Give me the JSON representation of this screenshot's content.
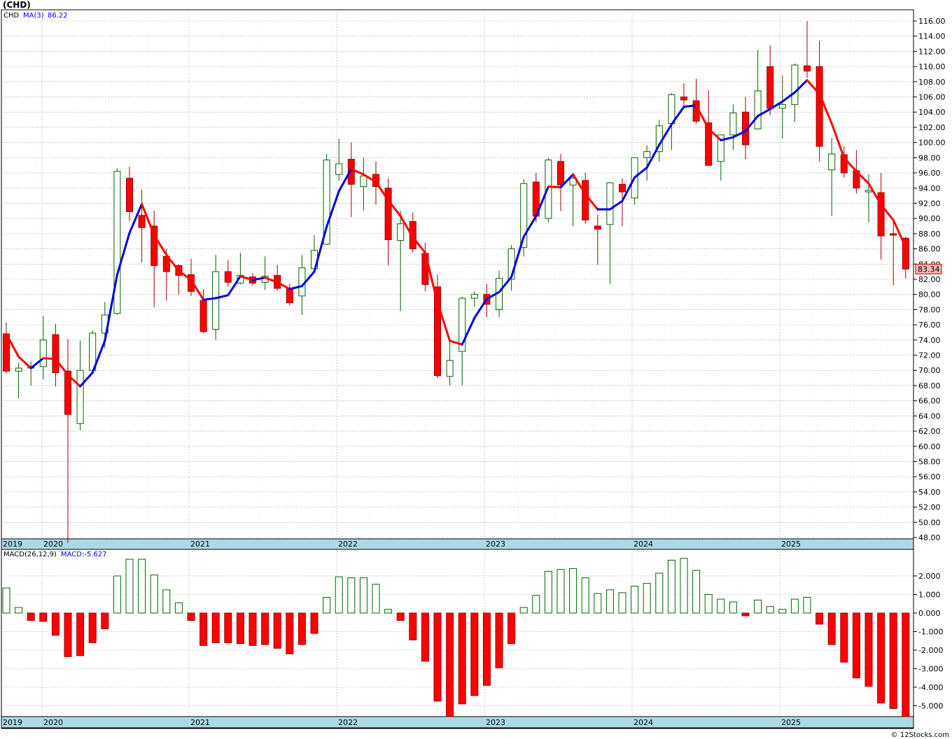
{
  "title": "(CHD)",
  "footer": "© 12Stocks.com",
  "colors": {
    "up": "#006400",
    "down": "#ff0000",
    "ma_up": "#0000dd",
    "ma_down": "#ff0000",
    "grid": "#a8a8a8",
    "axis_band": "#add8e6",
    "last_price_bg": "#f4b8b8"
  },
  "price_legend": {
    "symbol": "CHD",
    "ma_label": "MA(3)",
    "ma_value": "86.22"
  },
  "macd_legend": {
    "label": "MACD(26,12,9)",
    "value_label": "MACD:-5.627"
  },
  "last_price": "83.34",
  "year_labels": [
    "2019",
    "2020",
    "2021",
    "2022",
    "2023",
    "2024",
    "2025"
  ],
  "chart_data": [
    {
      "type": "candlestick",
      "period": "monthly",
      "ylim": [
        48,
        116
      ],
      "yticks": [
        "48.00",
        "50.00",
        "52.00",
        "54.00",
        "56.00",
        "58.00",
        "60.00",
        "62.00",
        "64.00",
        "66.00",
        "68.00",
        "70.00",
        "72.00",
        "74.00",
        "76.00",
        "78.00",
        "80.00",
        "82.00",
        "84.00",
        "86.00",
        "88.00",
        "90.00",
        "92.00",
        "94.00",
        "96.00",
        "98.00",
        "100.00",
        "102.00",
        "104.00",
        "106.00",
        "108.00",
        "110.00",
        "112.00",
        "114.00",
        "116.00"
      ],
      "grid": true,
      "ohlc": [
        [
          74.8,
          76.3,
          69.6,
          69.9
        ],
        [
          69.9,
          71.0,
          66.3,
          70.3
        ],
        [
          70.3,
          71.2,
          68.0,
          70.5
        ],
        [
          70.5,
          77.2,
          68.8,
          74.0
        ],
        [
          74.7,
          76.1,
          67.9,
          69.7
        ],
        [
          69.9,
          74.1,
          47.3,
          64.2
        ],
        [
          63.0,
          73.9,
          62.1,
          70.0
        ],
        [
          70.0,
          75.3,
          69.5,
          74.9
        ],
        [
          74.9,
          79.0,
          72.9,
          77.3
        ],
        [
          77.5,
          96.6,
          77.3,
          96.2
        ],
        [
          95.3,
          96.8,
          89.7,
          90.9
        ],
        [
          90.4,
          93.8,
          84.2,
          88.8
        ],
        [
          89.0,
          91.0,
          78.3,
          83.8
        ],
        [
          85.0,
          86.0,
          79.2,
          83.0
        ],
        [
          83.8,
          84.0,
          80.0,
          82.5
        ],
        [
          82.6,
          84.7,
          79.8,
          80.4
        ],
        [
          79.2,
          80.7,
          74.9,
          75.1
        ],
        [
          75.4,
          85.2,
          74.0,
          83.0
        ],
        [
          83.0,
          84.5,
          81.0,
          81.6
        ],
        [
          81.5,
          85.5,
          81.3,
          82.5
        ],
        [
          82.3,
          82.8,
          81.1,
          81.5
        ],
        [
          81.6,
          85.0,
          80.6,
          82.4
        ],
        [
          82.5,
          83.9,
          80.5,
          80.8
        ],
        [
          80.8,
          81.4,
          78.6,
          78.9
        ],
        [
          79.8,
          85.2,
          77.3,
          83.5
        ],
        [
          83.4,
          87.8,
          82.8,
          85.8
        ],
        [
          86.6,
          98.5,
          86.5,
          97.7
        ],
        [
          95.8,
          100.5,
          95.0,
          97.2
        ],
        [
          97.8,
          100.0,
          90.2,
          94.5
        ],
        [
          94.2,
          98.0,
          91.0,
          95.6
        ],
        [
          95.8,
          97.5,
          91.8,
          94.2
        ],
        [
          94.0,
          95.3,
          83.8,
          87.2
        ],
        [
          87.1,
          91.0,
          77.8,
          89.3
        ],
        [
          89.6,
          90.8,
          85.5,
          86.0
        ],
        [
          85.4,
          86.8,
          80.4,
          81.3
        ],
        [
          81.0,
          82.6,
          69.0,
          69.3
        ],
        [
          69.2,
          73.8,
          68.0,
          71.3
        ],
        [
          72.5,
          79.7,
          68.0,
          79.5
        ],
        [
          79.5,
          80.4,
          78.4,
          80.0
        ],
        [
          80.0,
          81.4,
          77.0,
          78.7
        ],
        [
          78.0,
          83.1,
          77.0,
          82.1
        ],
        [
          82.0,
          86.5,
          80.5,
          86.0
        ],
        [
          86.2,
          95.2,
          85.0,
          94.6
        ],
        [
          94.8,
          96.0,
          89.5,
          90.3
        ],
        [
          90.0,
          98.0,
          89.5,
          97.7
        ],
        [
          97.5,
          98.5,
          91.0,
          94.4
        ],
        [
          94.4,
          96.0,
          89.0,
          95.3
        ],
        [
          95.0,
          96.0,
          89.3,
          89.8
        ],
        [
          89.0,
          90.5,
          83.9,
          88.6
        ],
        [
          89.2,
          94.8,
          81.4,
          94.7
        ],
        [
          94.5,
          95.3,
          89.0,
          93.5
        ],
        [
          92.7,
          98.0,
          91.8,
          98.0
        ],
        [
          98.0,
          99.6,
          95.0,
          98.8
        ],
        [
          98.8,
          103.0,
          97.5,
          102.2
        ],
        [
          102.5,
          106.5,
          99.0,
          106.3
        ],
        [
          106.0,
          107.8,
          104.5,
          105.6
        ],
        [
          105.5,
          108.4,
          102.5,
          102.8
        ],
        [
          102.6,
          106.9,
          96.9,
          97.0
        ],
        [
          97.5,
          101.0,
          95.0,
          101.0
        ],
        [
          101.0,
          105.0,
          99.0,
          103.9
        ],
        [
          104.0,
          106.0,
          97.8,
          99.7
        ],
        [
          101.8,
          112.2,
          101.7,
          106.8
        ],
        [
          110.0,
          112.8,
          103.6,
          104.5
        ],
        [
          104.5,
          108.8,
          100.5,
          105.0
        ],
        [
          105.0,
          110.4,
          102.7,
          110.2
        ],
        [
          110.1,
          116.0,
          108.5,
          109.4
        ],
        [
          110.0,
          113.4,
          97.5,
          99.5
        ],
        [
          96.4,
          100.6,
          90.3,
          98.5
        ],
        [
          98.4,
          99.5,
          95.4,
          96.0
        ],
        [
          96.3,
          99.0,
          93.3,
          94.0
        ],
        [
          93.5,
          95.8,
          89.5,
          93.7
        ],
        [
          93.4,
          96.0,
          84.6,
          87.7
        ],
        [
          88.0,
          90.0,
          81.2,
          87.8
        ],
        [
          87.4,
          87.6,
          82.1,
          83.34
        ]
      ],
      "ma3": [
        74.8,
        71.8,
        70.3,
        71.6,
        71.5,
        69.4,
        67.9,
        69.7,
        73.9,
        82.6,
        88.1,
        91.9,
        87.8,
        85.2,
        83.1,
        81.9,
        79.3,
        79.5,
        79.9,
        82.4,
        81.9,
        82.2,
        81.6,
        80.7,
        81.1,
        83.0,
        88.9,
        93.6,
        96.5,
        95.8,
        94.8,
        92.4,
        90.3,
        87.5,
        85.5,
        78.9,
        73.9,
        73.4,
        76.9,
        79.4,
        80.3,
        82.3,
        87.6,
        90.3,
        94.2,
        94.1,
        95.8,
        93.2,
        91.2,
        91.2,
        92.3,
        95.4,
        96.7,
        99.7,
        102.4,
        104.7,
        104.9,
        101.8,
        100.3,
        100.7,
        101.5,
        103.5,
        104.4,
        105.4,
        106.6,
        108.2,
        106.4,
        102.5,
        98.0,
        96.2,
        94.6,
        91.8,
        89.8,
        86.22
      ],
      "macd_ylim": [
        -5.5,
        3.1
      ],
      "macd_yticks": [
        "-5.000",
        "-4.000",
        "-3.000",
        "-2.000",
        "-1.000",
        "0.000",
        "1.000",
        "2.000"
      ],
      "macd_hist": [
        1.35,
        0.3,
        -0.4,
        -0.45,
        -1.2,
        -2.35,
        -2.3,
        -1.6,
        -0.85,
        2.0,
        2.9,
        2.9,
        2.05,
        1.25,
        0.55,
        -0.4,
        -1.75,
        -1.6,
        -1.6,
        -1.65,
        -1.75,
        -1.7,
        -1.9,
        -2.2,
        -1.7,
        -1.1,
        0.85,
        1.95,
        1.9,
        1.9,
        1.55,
        0.2,
        -0.4,
        -1.45,
        -2.6,
        -4.75,
        -5.6,
        -4.9,
        -4.45,
        -3.9,
        -2.95,
        -1.65,
        0.3,
        0.95,
        2.25,
        2.35,
        2.4,
        1.9,
        1.05,
        1.25,
        1.1,
        1.45,
        1.6,
        2.15,
        2.85,
        2.95,
        2.3,
        1.0,
        0.75,
        0.6,
        -0.15,
        0.7,
        0.35,
        0.2,
        0.75,
        0.85,
        -0.6,
        -1.7,
        -2.65,
        -3.5,
        -3.95,
        -4.85,
        -5.15,
        -5.627
      ]
    }
  ]
}
